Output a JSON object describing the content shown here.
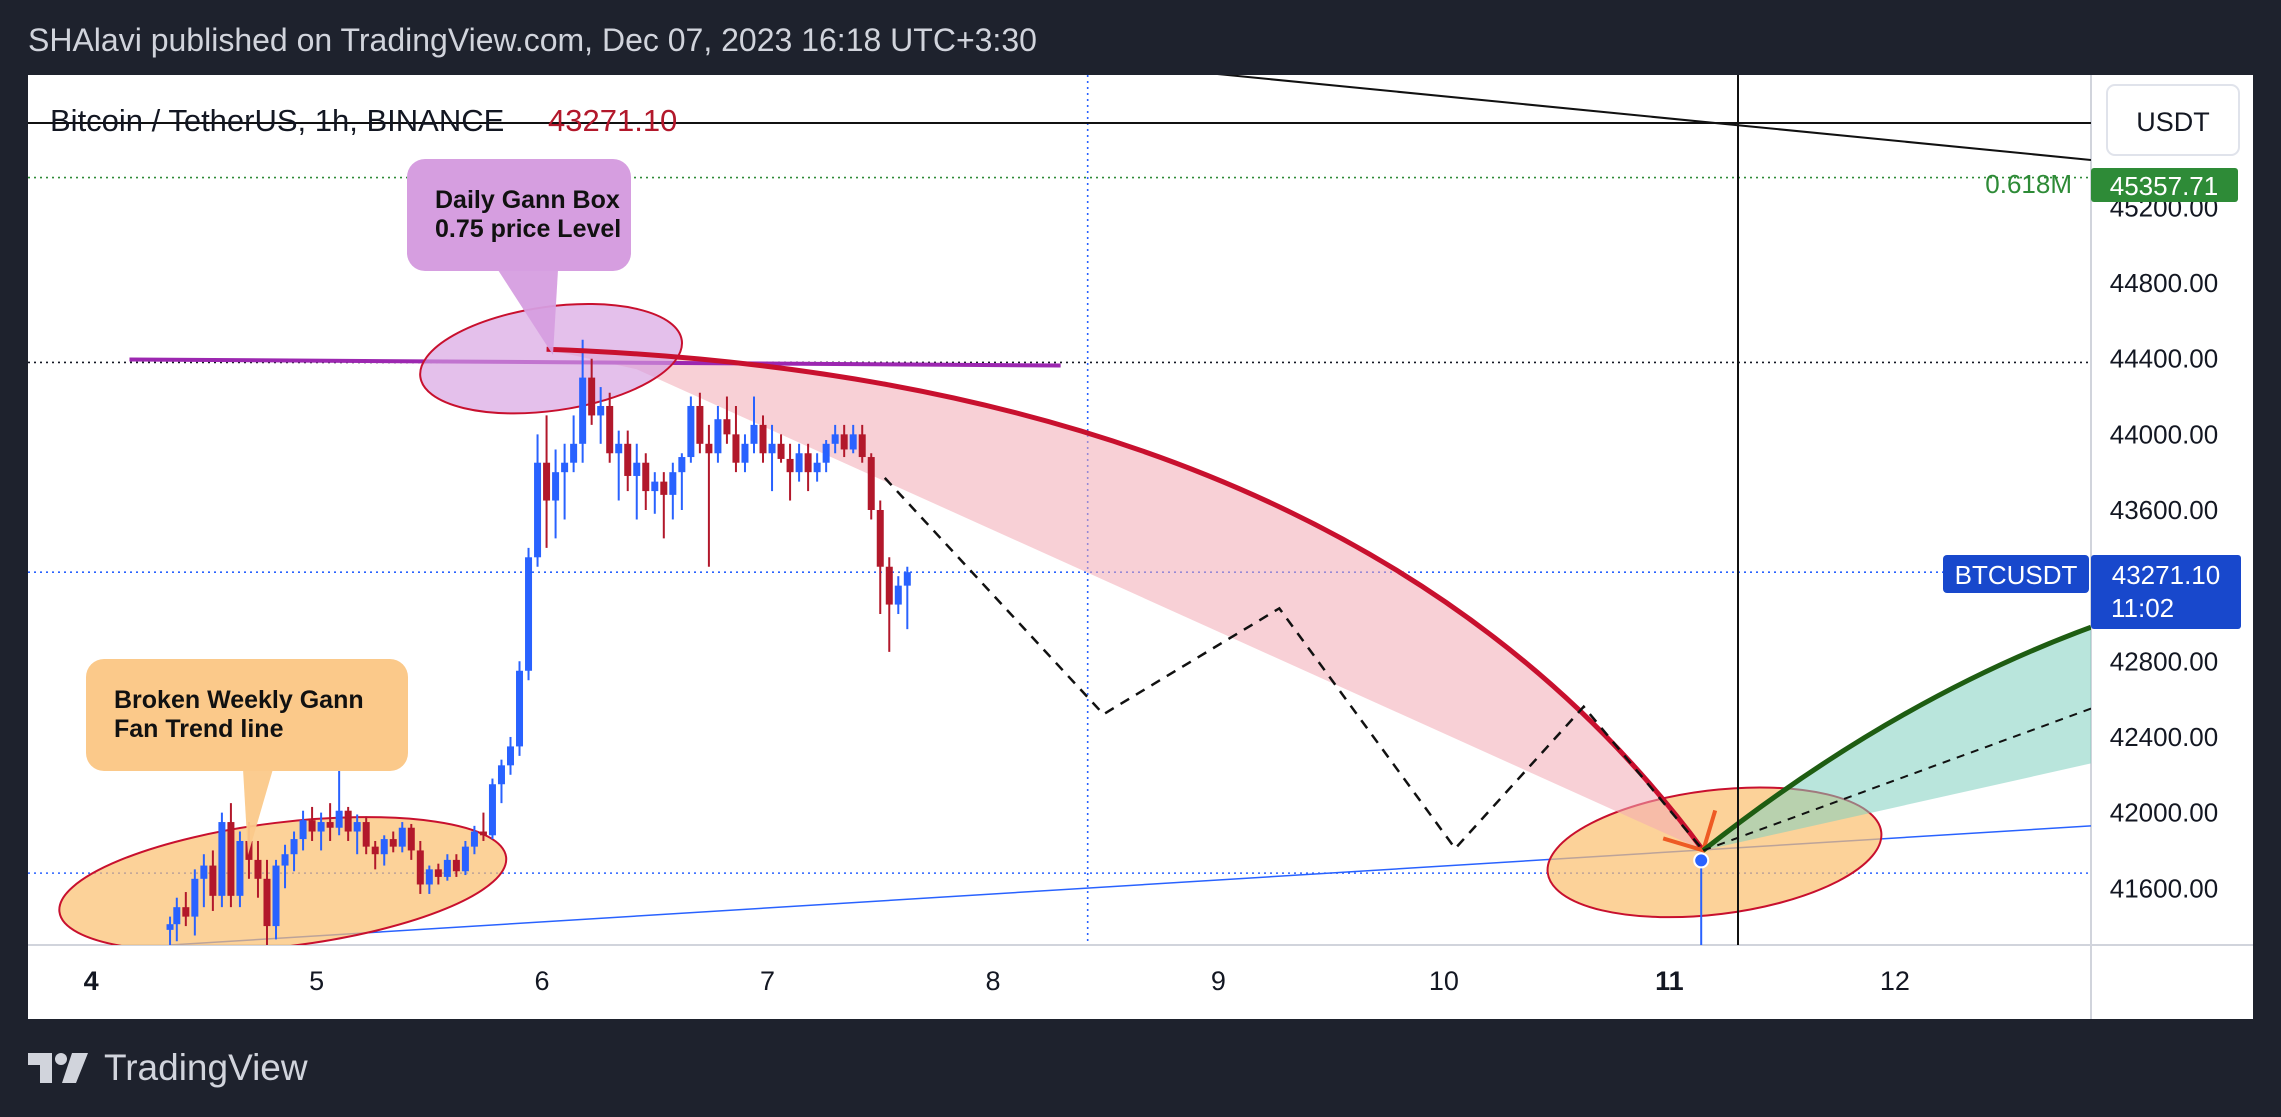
{
  "header": {
    "publish_line": "SHAlavi published on TradingView.com, Dec 07, 2023 16:18 UTC+3:30"
  },
  "footer": {
    "brand": "TradingView"
  },
  "colors": {
    "up": "#2962ff",
    "down": "#b2182b",
    "red_path": "#c8102e",
    "green_path": "#1e5d12",
    "green_fill": "#7fcfbf",
    "pink_fill": "#f2a9b5",
    "orange_fill": "#fbbf6e",
    "purple": "#9c27b0",
    "fib_green": "#2e8b37",
    "dark_bg": "#1e222d",
    "label_blue": "#1848cc"
  },
  "chart_data": {
    "type": "candlestick",
    "title": "Bitcoin / TetherUS, 1h, BINANCE",
    "last_price": "43271.10",
    "currency_button": "USDT",
    "symbol_label": "BTCUSDT",
    "countdown": "11:02",
    "fib_level": {
      "label": "0.618M",
      "value": "45357.71"
    },
    "y_axis": {
      "ticks": [
        "45200.00",
        "44800.00",
        "44400.00",
        "44000.00",
        "43600.00",
        "42800.00",
        "42400.00",
        "42000.00",
        "41600.00"
      ],
      "range": [
        41300,
        45900
      ]
    },
    "x_axis": {
      "ticks": [
        {
          "label": "4",
          "bold": true
        },
        {
          "label": "5",
          "bold": false
        },
        {
          "label": "6",
          "bold": false
        },
        {
          "label": "7",
          "bold": false
        },
        {
          "label": "8",
          "bold": false
        },
        {
          "label": "9",
          "bold": false
        },
        {
          "label": "10",
          "bold": false
        },
        {
          "label": "11",
          "bold": true
        },
        {
          "label": "12",
          "bold": false
        }
      ],
      "range_days": [
        3.72,
        12.87
      ]
    },
    "horizontal_levels": [
      45357.71,
      44380,
      43271.1,
      41680
    ],
    "purple_level": 44380,
    "annotations": [
      {
        "text": [
          "Daily Gann Box",
          "0.75 price Level"
        ],
        "color": "#d69ee0"
      },
      {
        "text": [
          "Broken Weekly Gann",
          "Fan Trend line"
        ],
        "color": "#fbc98a"
      }
    ],
    "candles": [
      {
        "t": 4.35,
        "o": 41380,
        "h": 41450,
        "l": 41300,
        "c": 41410
      },
      {
        "t": 4.38,
        "o": 41410,
        "h": 41550,
        "l": 41320,
        "c": 41500
      },
      {
        "t": 4.42,
        "o": 41500,
        "h": 41580,
        "l": 41400,
        "c": 41450
      },
      {
        "t": 4.46,
        "o": 41450,
        "h": 41700,
        "l": 41350,
        "c": 41650
      },
      {
        "t": 4.5,
        "o": 41650,
        "h": 41780,
        "l": 41500,
        "c": 41720
      },
      {
        "t": 4.54,
        "o": 41720,
        "h": 41800,
        "l": 41480,
        "c": 41560
      },
      {
        "t": 4.58,
        "o": 41560,
        "h": 42000,
        "l": 41500,
        "c": 41950
      },
      {
        "t": 4.62,
        "o": 41950,
        "h": 42050,
        "l": 41500,
        "c": 41560
      },
      {
        "t": 4.66,
        "o": 41560,
        "h": 41900,
        "l": 41500,
        "c": 41850
      },
      {
        "t": 4.7,
        "o": 41850,
        "h": 41950,
        "l": 41650,
        "c": 41750
      },
      {
        "t": 4.74,
        "o": 41750,
        "h": 41850,
        "l": 41550,
        "c": 41650
      },
      {
        "t": 4.78,
        "o": 41650,
        "h": 41750,
        "l": 41300,
        "c": 41400
      },
      {
        "t": 4.82,
        "o": 41400,
        "h": 41750,
        "l": 41330,
        "c": 41720
      },
      {
        "t": 4.86,
        "o": 41720,
        "h": 41830,
        "l": 41600,
        "c": 41780
      },
      {
        "t": 4.9,
        "o": 41780,
        "h": 41900,
        "l": 41690,
        "c": 41860
      },
      {
        "t": 4.94,
        "o": 41860,
        "h": 42010,
        "l": 41800,
        "c": 41960
      },
      {
        "t": 4.98,
        "o": 41960,
        "h": 42030,
        "l": 41850,
        "c": 41900
      },
      {
        "t": 5.02,
        "o": 41900,
        "h": 42000,
        "l": 41800,
        "c": 41950
      },
      {
        "t": 5.06,
        "o": 41950,
        "h": 42050,
        "l": 41850,
        "c": 41920
      },
      {
        "t": 5.1,
        "o": 41920,
        "h": 42300,
        "l": 41880,
        "c": 42010
      },
      {
        "t": 5.14,
        "o": 42010,
        "h": 42030,
        "l": 41850,
        "c": 41900
      },
      {
        "t": 5.18,
        "o": 41900,
        "h": 41990,
        "l": 41780,
        "c": 41950
      },
      {
        "t": 5.22,
        "o": 41950,
        "h": 41980,
        "l": 41780,
        "c": 41820
      },
      {
        "t": 5.26,
        "o": 41820,
        "h": 41850,
        "l": 41700,
        "c": 41780
      },
      {
        "t": 5.3,
        "o": 41780,
        "h": 41880,
        "l": 41720,
        "c": 41860
      },
      {
        "t": 5.34,
        "o": 41860,
        "h": 41900,
        "l": 41790,
        "c": 41820
      },
      {
        "t": 5.38,
        "o": 41820,
        "h": 41950,
        "l": 41790,
        "c": 41920
      },
      {
        "t": 5.42,
        "o": 41920,
        "h": 41940,
        "l": 41750,
        "c": 41800
      },
      {
        "t": 5.46,
        "o": 41800,
        "h": 41850,
        "l": 41570,
        "c": 41620
      },
      {
        "t": 5.5,
        "o": 41620,
        "h": 41720,
        "l": 41570,
        "c": 41700
      },
      {
        "t": 5.54,
        "o": 41700,
        "h": 41730,
        "l": 41620,
        "c": 41660
      },
      {
        "t": 5.58,
        "o": 41660,
        "h": 41780,
        "l": 41640,
        "c": 41750
      },
      {
        "t": 5.62,
        "o": 41750,
        "h": 41780,
        "l": 41660,
        "c": 41690
      },
      {
        "t": 5.66,
        "o": 41690,
        "h": 41850,
        "l": 41670,
        "c": 41820
      },
      {
        "t": 5.7,
        "o": 41820,
        "h": 41930,
        "l": 41780,
        "c": 41900
      },
      {
        "t": 5.74,
        "o": 41900,
        "h": 42000,
        "l": 41850,
        "c": 41880
      },
      {
        "t": 5.78,
        "o": 41880,
        "h": 42180,
        "l": 41860,
        "c": 42150
      },
      {
        "t": 5.82,
        "o": 42150,
        "h": 42280,
        "l": 42050,
        "c": 42250
      },
      {
        "t": 5.86,
        "o": 42250,
        "h": 42400,
        "l": 42200,
        "c": 42350
      },
      {
        "t": 5.9,
        "o": 42350,
        "h": 42800,
        "l": 42300,
        "c": 42750
      },
      {
        "t": 5.94,
        "o": 42750,
        "h": 43400,
        "l": 42700,
        "c": 43350
      },
      {
        "t": 5.98,
        "o": 43350,
        "h": 44000,
        "l": 43300,
        "c": 43850
      },
      {
        "t": 6.02,
        "o": 43850,
        "h": 44100,
        "l": 43400,
        "c": 43650
      },
      {
        "t": 6.06,
        "o": 43650,
        "h": 43920,
        "l": 43450,
        "c": 43800
      },
      {
        "t": 6.1,
        "o": 43800,
        "h": 43950,
        "l": 43550,
        "c": 43850
      },
      {
        "t": 6.14,
        "o": 43850,
        "h": 44100,
        "l": 43800,
        "c": 43950
      },
      {
        "t": 6.18,
        "o": 43950,
        "h": 44500,
        "l": 43850,
        "c": 44300
      },
      {
        "t": 6.22,
        "o": 44300,
        "h": 44400,
        "l": 44050,
        "c": 44100
      },
      {
        "t": 6.26,
        "o": 44100,
        "h": 44250,
        "l": 43950,
        "c": 44150
      },
      {
        "t": 6.3,
        "o": 44150,
        "h": 44220,
        "l": 43850,
        "c": 43900
      },
      {
        "t": 6.34,
        "o": 43900,
        "h": 44020,
        "l": 43650,
        "c": 43950
      },
      {
        "t": 6.38,
        "o": 43950,
        "h": 44020,
        "l": 43700,
        "c": 43780
      },
      {
        "t": 6.42,
        "o": 43780,
        "h": 43950,
        "l": 43550,
        "c": 43850
      },
      {
        "t": 6.46,
        "o": 43850,
        "h": 43900,
        "l": 43600,
        "c": 43700
      },
      {
        "t": 6.5,
        "o": 43700,
        "h": 43800,
        "l": 43580,
        "c": 43750
      },
      {
        "t": 6.54,
        "o": 43750,
        "h": 43800,
        "l": 43450,
        "c": 43680
      },
      {
        "t": 6.58,
        "o": 43680,
        "h": 43850,
        "l": 43550,
        "c": 43800
      },
      {
        "t": 6.62,
        "o": 43800,
        "h": 43900,
        "l": 43600,
        "c": 43880
      },
      {
        "t": 6.66,
        "o": 43880,
        "h": 44200,
        "l": 43850,
        "c": 44150
      },
      {
        "t": 6.7,
        "o": 44150,
        "h": 44220,
        "l": 43900,
        "c": 43950
      },
      {
        "t": 6.74,
        "o": 43950,
        "h": 44050,
        "l": 43300,
        "c": 43900
      },
      {
        "t": 6.78,
        "o": 43900,
        "h": 44150,
        "l": 43850,
        "c": 44080
      },
      {
        "t": 6.82,
        "o": 44080,
        "h": 44200,
        "l": 43950,
        "c": 44000
      },
      {
        "t": 6.86,
        "o": 44000,
        "h": 44150,
        "l": 43800,
        "c": 43850
      },
      {
        "t": 6.9,
        "o": 43850,
        "h": 44000,
        "l": 43800,
        "c": 43950
      },
      {
        "t": 6.94,
        "o": 43950,
        "h": 44200,
        "l": 43900,
        "c": 44050
      },
      {
        "t": 6.98,
        "o": 44050,
        "h": 44100,
        "l": 43850,
        "c": 43900
      },
      {
        "t": 7.02,
        "o": 43900,
        "h": 44050,
        "l": 43700,
        "c": 43950
      },
      {
        "t": 7.06,
        "o": 43950,
        "h": 44000,
        "l": 43850,
        "c": 43870
      },
      {
        "t": 7.1,
        "o": 43870,
        "h": 43950,
        "l": 43650,
        "c": 43800
      },
      {
        "t": 7.14,
        "o": 43800,
        "h": 43950,
        "l": 43750,
        "c": 43900
      },
      {
        "t": 7.18,
        "o": 43900,
        "h": 43950,
        "l": 43700,
        "c": 43800
      },
      {
        "t": 7.22,
        "o": 43800,
        "h": 43900,
        "l": 43750,
        "c": 43850
      },
      {
        "t": 7.26,
        "o": 43850,
        "h": 43970,
        "l": 43800,
        "c": 43950
      },
      {
        "t": 7.3,
        "o": 43950,
        "h": 44050,
        "l": 43900,
        "c": 44000
      },
      {
        "t": 7.34,
        "o": 44000,
        "h": 44050,
        "l": 43880,
        "c": 43920
      },
      {
        "t": 7.38,
        "o": 43920,
        "h": 44050,
        "l": 43900,
        "c": 44000
      },
      {
        "t": 7.42,
        "o": 44000,
        "h": 44050,
        "l": 43850,
        "c": 43880
      },
      {
        "t": 7.46,
        "o": 43880,
        "h": 43900,
        "l": 43550,
        "c": 43600
      },
      {
        "t": 7.5,
        "o": 43600,
        "h": 43650,
        "l": 43050,
        "c": 43300
      },
      {
        "t": 7.54,
        "o": 43300,
        "h": 43350,
        "l": 42850,
        "c": 43100
      },
      {
        "t": 7.58,
        "o": 43100,
        "h": 43250,
        "l": 43050,
        "c": 43200
      },
      {
        "t": 7.62,
        "o": 43200,
        "h": 43300,
        "l": 42970,
        "c": 43271.1
      }
    ],
    "forecast_path": [
      {
        "t": 7.52,
        "p": 43770
      },
      {
        "t": 8.49,
        "p": 42520
      },
      {
        "t": 9.27,
        "p": 43080
      },
      {
        "t": 10.05,
        "p": 41810
      },
      {
        "t": 10.62,
        "p": 42560
      },
      {
        "t": 11.15,
        "p": 41800
      }
    ],
    "red_arc_end": {
      "t": 11.15,
      "p": 41800
    },
    "green_arc_end": {
      "t": 12.87,
      "p": 42980
    },
    "trend_line": [
      {
        "t": 4.35,
        "p": 41300
      },
      {
        "t": 12.87,
        "p": 41930
      }
    ],
    "purple_line_span": [
      4.17,
      8.3
    ]
  }
}
